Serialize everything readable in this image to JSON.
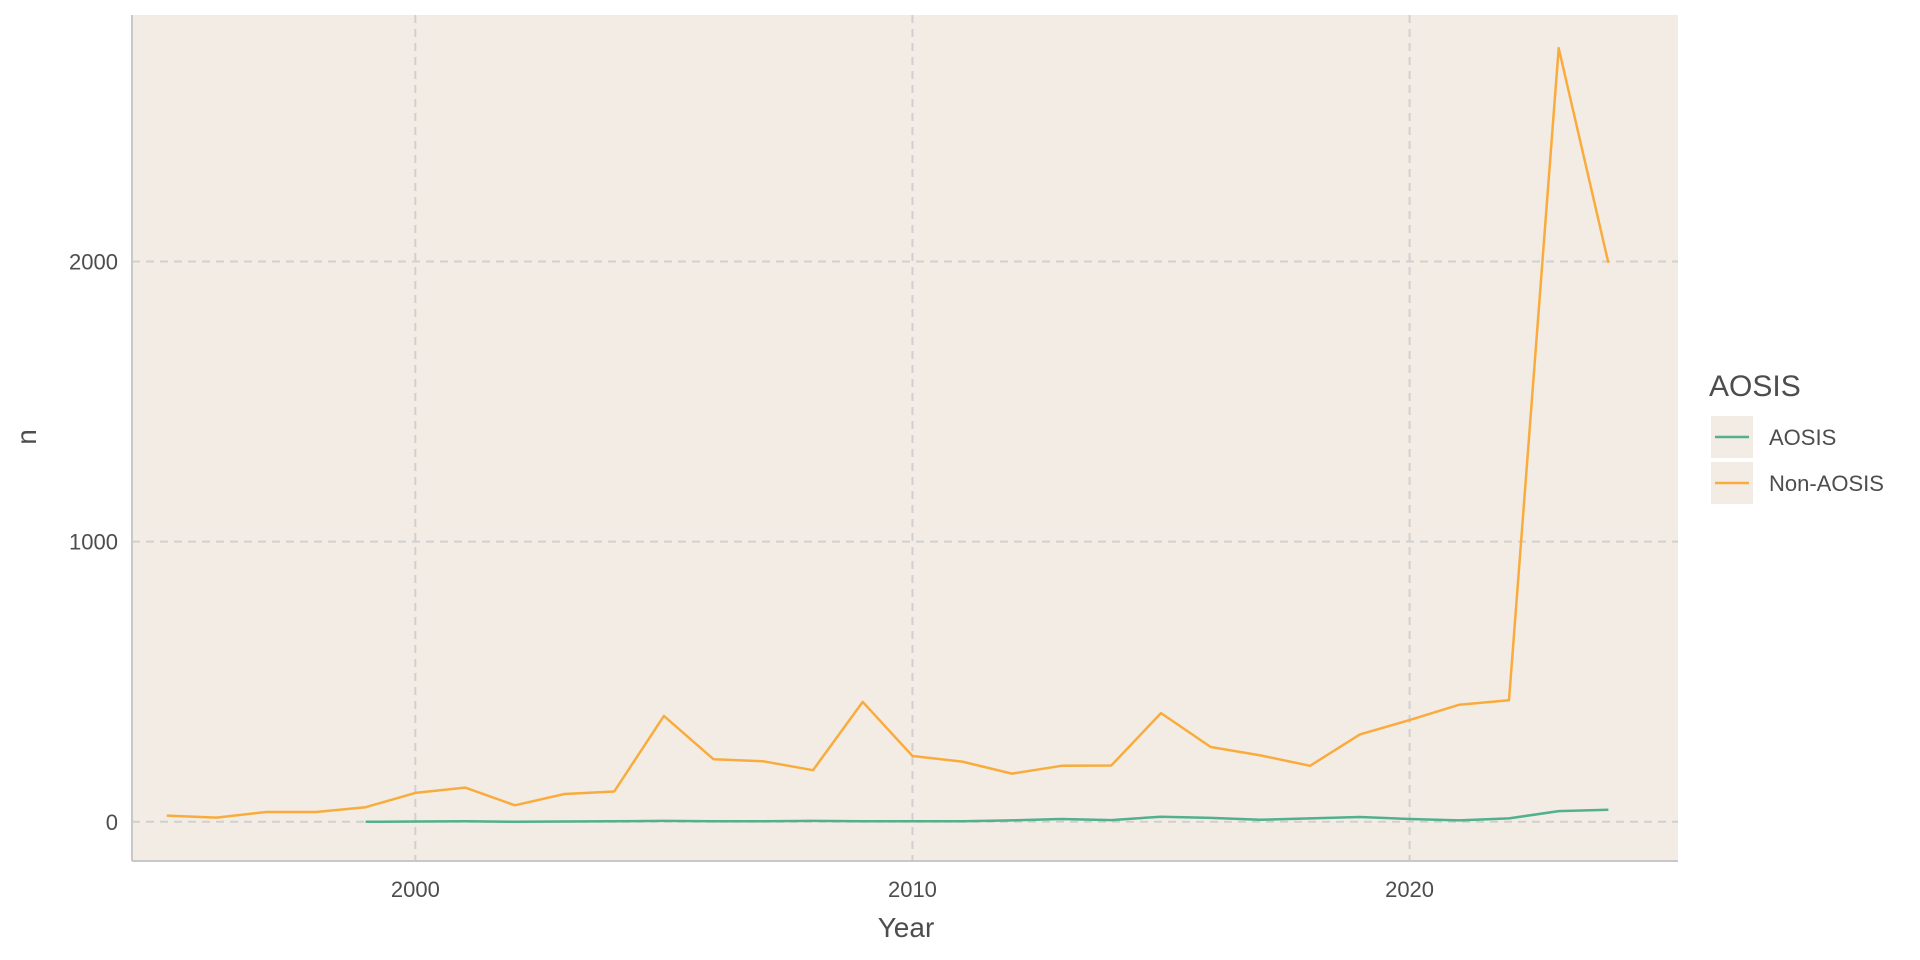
{
  "chart_data": {
    "type": "line",
    "title": "",
    "xlabel": "Year",
    "ylabel": "n",
    "xlim": [
      1994.3,
      2025.4
    ],
    "ylim": [
      -140,
      2880
    ],
    "x_ticks": [
      2000,
      2010,
      2020
    ],
    "y_ticks": [
      0,
      1000,
      2000
    ],
    "grid": true,
    "grid_style": "dashed",
    "panel_background": "#f3ece4",
    "legend": {
      "title": "AOSIS",
      "position": "right"
    },
    "series": [
      {
        "name": "AOSIS",
        "color": "#52b08c",
        "x": [
          1999,
          2000,
          2001,
          2002,
          2003,
          2004,
          2005,
          2006,
          2007,
          2008,
          2009,
          2010,
          2011,
          2012,
          2013,
          2014,
          2015,
          2016,
          2017,
          2018,
          2019,
          2020,
          2021,
          2022,
          2023,
          2024
        ],
        "values": [
          0,
          1,
          2,
          0,
          1,
          2,
          3,
          2,
          2,
          3,
          2,
          2,
          2,
          5,
          10,
          6,
          18,
          14,
          7,
          12,
          17,
          10,
          5,
          12,
          38,
          43
        ]
      },
      {
        "name": "Non-AOSIS",
        "color": "#f9ac3d",
        "x": [
          1995,
          1996,
          1997,
          1998,
          1999,
          2000,
          2001,
          2002,
          2003,
          2004,
          2005,
          2006,
          2007,
          2008,
          2009,
          2010,
          2011,
          2012,
          2013,
          2014,
          2015,
          2016,
          2017,
          2018,
          2019,
          2020,
          2021,
          2022,
          2023,
          2024
        ],
        "values": [
          22,
          15,
          35,
          35,
          52,
          103,
          122,
          59,
          99,
          108,
          378,
          223,
          216,
          184,
          428,
          235,
          215,
          172,
          200,
          201,
          388,
          267,
          237,
          200,
          312,
          363,
          418,
          434,
          2762,
          1995
        ]
      }
    ]
  }
}
